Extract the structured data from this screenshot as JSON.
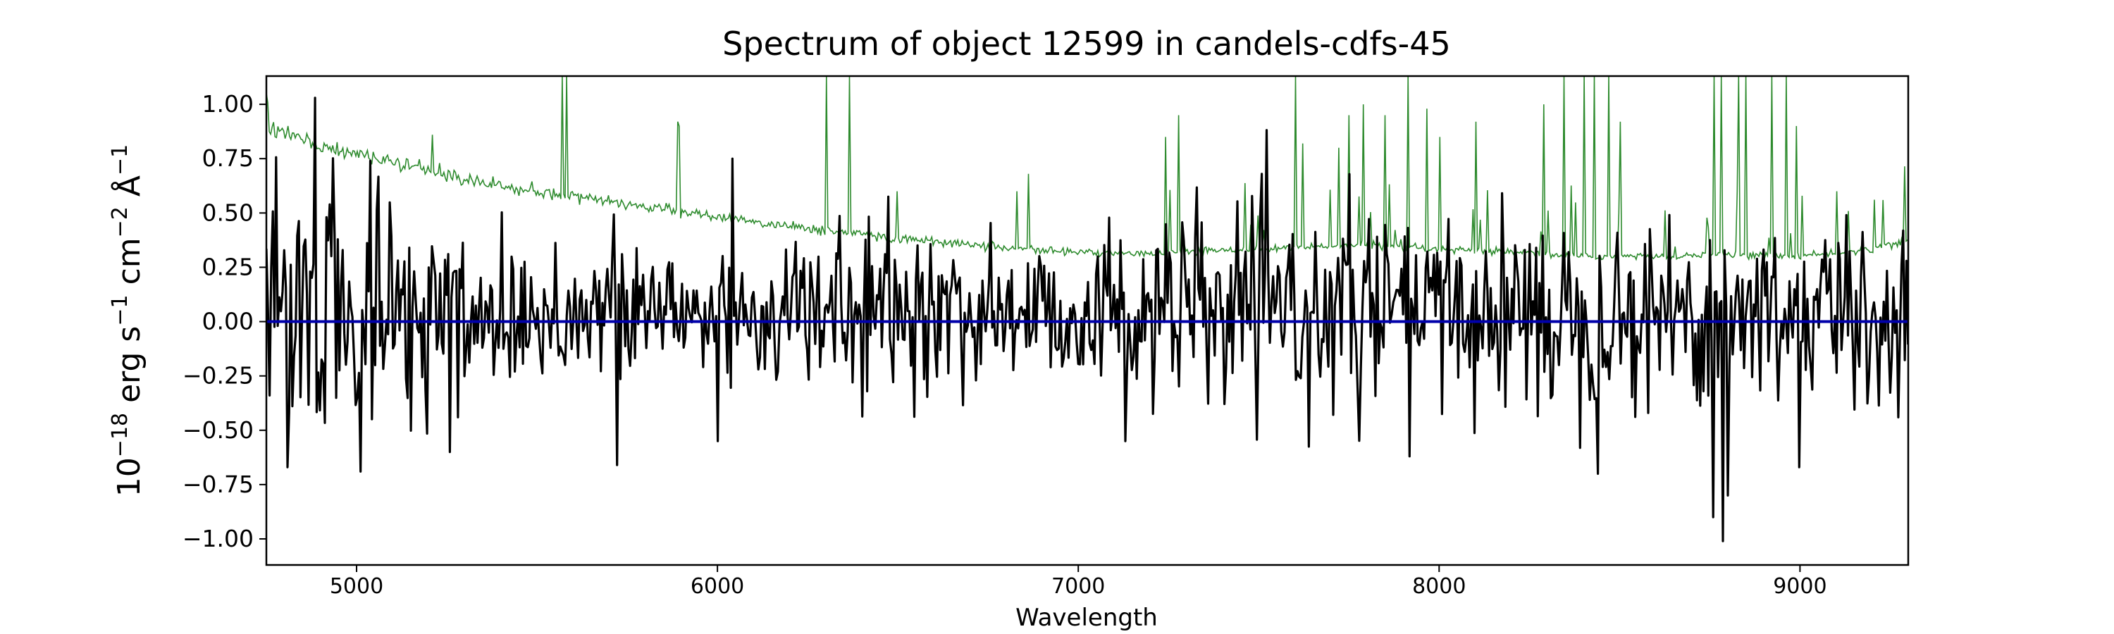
{
  "chart_data": {
    "type": "line",
    "title": "Spectrum of object 12599 in candels-cdfs-45",
    "xlabel": "Wavelength",
    "ylabel_base": "10",
    "ylabel_exp": "−18",
    "ylabel_units": " erg s",
    "ylabel_exp2": "−1",
    "ylabel_units2": " cm",
    "ylabel_exp3": "−2",
    "ylabel_units3": " Å",
    "ylabel_exp4": "−1",
    "xlim": [
      4750,
      9300
    ],
    "ylim": [
      -1.12,
      1.13
    ],
    "xticks": [
      5000,
      6000,
      7000,
      8000,
      9000
    ],
    "xtick_labels": [
      "5000",
      "6000",
      "7000",
      "8000",
      "9000"
    ],
    "yticks": [
      1.0,
      0.75,
      0.5,
      0.25,
      0.0,
      -0.25,
      -0.5,
      -0.75,
      -1.0
    ],
    "ytick_labels": [
      "1.00",
      "0.75",
      "0.50",
      "0.25",
      "0.00",
      "−0.25",
      "−0.50",
      "−0.75",
      "−1.00"
    ],
    "grid": false,
    "series": [
      {
        "role": "error",
        "color": "#2e8b2e",
        "continuum": [
          [
            4750,
            1.1
          ],
          [
            4760,
            0.88
          ],
          [
            4800,
            0.86
          ],
          [
            4900,
            0.8
          ],
          [
            5000,
            0.77
          ],
          [
            5100,
            0.73
          ],
          [
            5200,
            0.69
          ],
          [
            5400,
            0.62
          ],
          [
            5600,
            0.58
          ],
          [
            5800,
            0.53
          ],
          [
            6000,
            0.48
          ],
          [
            6200,
            0.44
          ],
          [
            6400,
            0.4
          ],
          [
            6600,
            0.37
          ],
          [
            6800,
            0.34
          ],
          [
            7000,
            0.32
          ],
          [
            7200,
            0.31
          ],
          [
            7400,
            0.33
          ],
          [
            7600,
            0.34
          ],
          [
            7800,
            0.35
          ],
          [
            8000,
            0.33
          ],
          [
            8200,
            0.32
          ],
          [
            8400,
            0.3
          ],
          [
            8600,
            0.3
          ],
          [
            8800,
            0.31
          ],
          [
            9000,
            0.3
          ],
          [
            9200,
            0.33
          ],
          [
            9300,
            0.38
          ]
        ],
        "spikes": [
          [
            5210,
            0.86
          ],
          [
            5570,
            1.13
          ],
          [
            5580,
            1.13
          ],
          [
            5888,
            0.92
          ],
          [
            5895,
            0.9
          ],
          [
            6300,
            1.13
          ],
          [
            6364,
            1.13
          ],
          [
            6498,
            0.6
          ],
          [
            6830,
            0.6
          ],
          [
            6863,
            0.68
          ],
          [
            7240,
            0.85
          ],
          [
            7276,
            0.95
          ],
          [
            7600,
            1.13
          ],
          [
            7620,
            0.82
          ],
          [
            7720,
            0.8
          ],
          [
            7750,
            0.95
          ],
          [
            7790,
            1.0
          ],
          [
            7850,
            0.95
          ],
          [
            7913,
            1.13
          ],
          [
            7965,
            0.98
          ],
          [
            8000,
            0.85
          ],
          [
            8100,
            0.92
          ],
          [
            8290,
            1.0
          ],
          [
            8344,
            1.13
          ],
          [
            8400,
            1.13
          ],
          [
            8430,
            1.13
          ],
          [
            8470,
            1.13
          ],
          [
            8500,
            0.92
          ],
          [
            8760,
            1.13
          ],
          [
            8780,
            1.13
          ],
          [
            8830,
            1.13
          ],
          [
            8850,
            1.13
          ],
          [
            8920,
            1.13
          ],
          [
            8960,
            1.13
          ],
          [
            8990,
            0.9
          ],
          [
            9100,
            0.6
          ]
        ]
      },
      {
        "role": "model",
        "color": "#0000aa",
        "constant": 0.0
      },
      {
        "role": "flux",
        "color": "#000000",
        "extremes": [
          [
            4885,
            1.03
          ],
          [
            4810,
            -0.67
          ],
          [
            5010,
            -0.69
          ],
          [
            5040,
            0.74
          ],
          [
            5260,
            -0.6
          ],
          [
            5720,
            -0.66
          ],
          [
            6000,
            -0.55
          ],
          [
            6040,
            0.75
          ],
          [
            7130,
            -0.55
          ],
          [
            7920,
            -0.62
          ],
          [
            8440,
            -0.7
          ],
          [
            8760,
            -0.9
          ],
          [
            8785,
            -1.01
          ],
          [
            8800,
            -0.8
          ],
          [
            9000,
            -0.67
          ]
        ]
      }
    ]
  }
}
